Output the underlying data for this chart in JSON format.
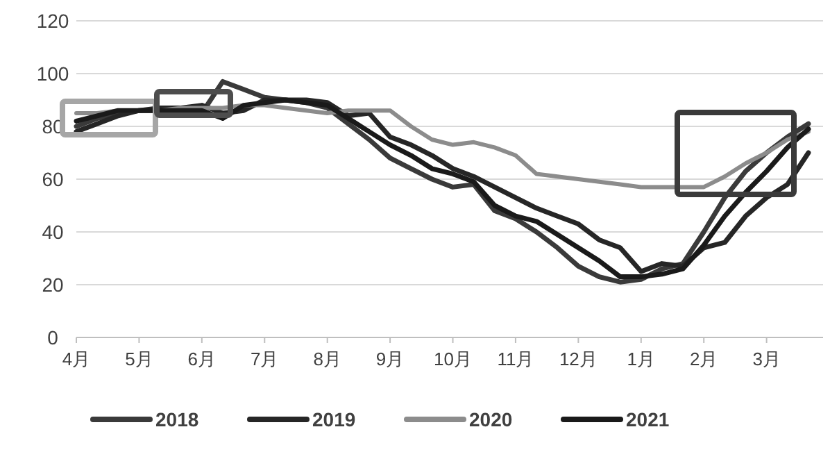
{
  "chart_data": {
    "type": "line",
    "ylim": [
      0,
      120
    ],
    "categories": [
      "4月",
      null,
      null,
      "5月",
      null,
      null,
      "6月",
      null,
      null,
      "7月",
      null,
      null,
      "8月",
      null,
      null,
      "9月",
      null,
      null,
      "10月",
      null,
      null,
      "11月",
      null,
      null,
      "12月",
      null,
      null,
      "1月",
      null,
      null,
      "2月",
      null,
      null,
      "3月",
      null,
      null
    ],
    "yticks": [
      0,
      20,
      40,
      60,
      80,
      100,
      120
    ],
    "grid": "y",
    "legend": "bottom",
    "marker": "none",
    "line_style": "solid",
    "series": [
      {
        "name": "2018",
        "color": "#3a3a3a",
        "values": [
          80,
          83,
          85,
          86,
          86,
          86,
          85,
          97,
          94,
          91,
          90,
          89,
          87,
          81,
          75,
          68,
          64,
          60,
          57,
          58,
          48,
          45,
          40,
          34,
          27,
          23,
          21,
          22,
          26,
          28,
          40,
          53,
          63,
          70,
          76,
          81
        ]
      },
      {
        "name": "2019",
        "color": "#262626",
        "values": [
          78,
          81,
          84,
          86,
          87,
          87,
          88,
          85,
          86,
          90,
          90,
          90,
          89,
          84,
          85,
          76,
          73,
          69,
          64,
          61,
          57,
          53,
          49,
          46,
          43,
          37,
          34,
          25,
          28,
          27,
          34,
          36,
          46,
          53,
          58,
          70
        ]
      },
      {
        "name": "2020",
        "color": "#8c8c8c",
        "values": [
          85,
          85,
          86,
          86,
          86,
          87,
          87,
          87,
          88,
          88,
          87,
          86,
          85,
          86,
          86,
          86,
          80,
          75,
          73,
          74,
          72,
          69,
          62,
          61,
          60,
          59,
          58,
          57,
          57,
          57,
          57,
          61,
          66,
          70,
          75,
          78
        ]
      },
      {
        "name": "2021",
        "color": "#1a1a1a",
        "values": [
          82,
          84,
          86,
          86,
          86,
          86,
          86,
          83,
          88,
          89,
          90,
          89,
          88,
          83,
          78,
          73,
          69,
          64,
          62,
          59,
          50,
          46,
          44,
          39,
          34,
          29,
          23,
          23,
          24,
          26,
          35,
          46,
          55,
          63,
          72,
          79
        ]
      }
    ]
  }
}
